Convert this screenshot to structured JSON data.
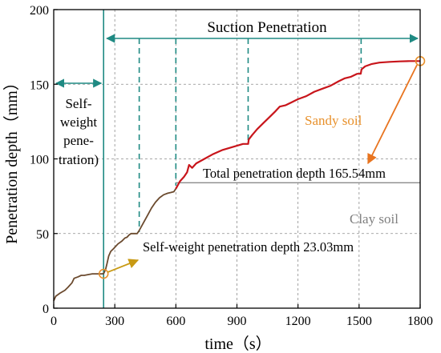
{
  "chart_data": {
    "type": "line",
    "xlabel": "time（s）",
    "ylabel": "Penetration depth（mm）",
    "xlim": [
      0,
      1800
    ],
    "ylim": [
      0,
      200
    ],
    "xticks": [
      0,
      300,
      600,
      900,
      1200,
      1500,
      1800
    ],
    "yticks": [
      0,
      50,
      100,
      150,
      200
    ],
    "grid": true,
    "colors": {
      "clay": "#6b4a2e",
      "sandy": "#c8151b",
      "marker": "#e8912c",
      "arrow_self": "#c89a14",
      "arrow_sandy": "#e8741f",
      "phase": "#1f8a83",
      "total_line": "#8a8a8a",
      "grid": "#8c8c8c"
    },
    "series": [
      {
        "segment": "clay",
        "x": [
          0,
          10,
          30,
          55,
          70,
          90,
          100,
          120,
          135,
          150,
          170,
          190,
          205,
          220,
          235,
          245,
          255,
          262,
          270,
          280,
          295,
          315,
          335,
          350,
          360,
          370,
          380,
          395,
          410,
          420,
          440,
          460,
          480,
          500,
          520,
          540,
          560,
          575,
          590,
          600
        ],
        "y": [
          5,
          8,
          10,
          12,
          14,
          17,
          20,
          21,
          22,
          22,
          22.5,
          23,
          23,
          23,
          23,
          23.03,
          26,
          30,
          35,
          38,
          40,
          43,
          45,
          47,
          47.5,
          49,
          50,
          50,
          50,
          52,
          57,
          62,
          67,
          71,
          74,
          76,
          77,
          77.5,
          78,
          80
        ]
      },
      {
        "segment": "sandy",
        "x": [
          600,
          620,
          640,
          655,
          665,
          680,
          700,
          740,
          780,
          830,
          880,
          930,
          955,
          958,
          975,
          1000,
          1030,
          1060,
          1090,
          1110,
          1140,
          1170,
          1200,
          1240,
          1280,
          1320,
          1360,
          1400,
          1430,
          1460,
          1490,
          1508,
          1512,
          1530,
          1560,
          1600,
          1650,
          1700,
          1750,
          1800
        ],
        "y": [
          80,
          85,
          88,
          91,
          96,
          94,
          97,
          100,
          103,
          106,
          108,
          110,
          110,
          113,
          116,
          120,
          124,
          128,
          132,
          135,
          136,
          138,
          140,
          142,
          145,
          147,
          149,
          152,
          154,
          155,
          157,
          157,
          160,
          162,
          163.5,
          164.5,
          165,
          165.3,
          165.5,
          165.54
        ]
      }
    ],
    "phases": {
      "self_weight_end": 245,
      "suction_start": 245,
      "suction_end": 1800,
      "dashed_markers": [
        420,
        600,
        955,
        1510
      ]
    },
    "markers": [
      {
        "x": 245,
        "y": 23.03
      },
      {
        "x": 1800,
        "y": 165.54
      }
    ],
    "text_labels": {
      "suction": "Suction Penetration",
      "self_weight_lines": [
        "Self-",
        "weight",
        "pene-",
        "tration)"
      ],
      "total": "Total penetration depth 165.54mm",
      "self_depth": "Self-weight penetration depth 23.03mm",
      "sandy": "Sandy soil",
      "clay": "Clay soil"
    },
    "total_depth_line_y": 84
  }
}
